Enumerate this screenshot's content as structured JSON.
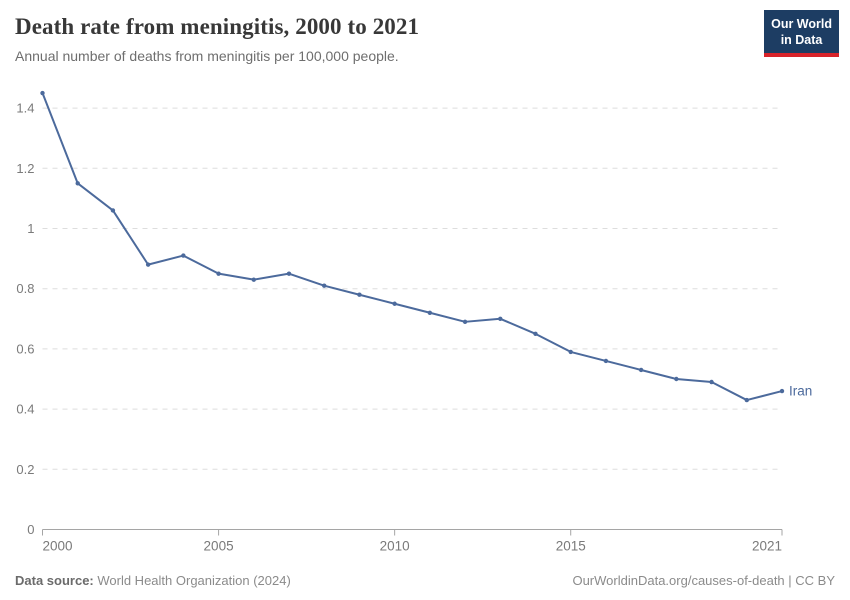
{
  "header": {
    "title": "Death rate from meningitis, 2000 to 2021",
    "subtitle": "Annual number of deaths from meningitis per 100,000 people.",
    "logo_line1": "Our World",
    "logo_line2": "in Data"
  },
  "chart_data": {
    "type": "line",
    "title": "Death rate from meningitis, 2000 to 2021",
    "xlabel": "",
    "ylabel": "",
    "xlim": [
      2000,
      2021
    ],
    "ylim": [
      0,
      1.45
    ],
    "grid": "horizontal-dashed",
    "legend_position": "end-of-line",
    "x_ticks": [
      2000,
      2005,
      2010,
      2015,
      2021
    ],
    "x_tick_labels": [
      "2000",
      "2005",
      "2010",
      "2015",
      "2021"
    ],
    "y_ticks": [
      0,
      0.2,
      0.4,
      0.6,
      0.8,
      1,
      1.2,
      1.4
    ],
    "y_tick_labels": [
      "0",
      "0.2",
      "0.4",
      "0.6",
      "0.8",
      "1",
      "1.2",
      "1.4"
    ],
    "series": [
      {
        "name": "Iran",
        "color": "#4C6A9C",
        "x": [
          2000,
          2001,
          2002,
          2003,
          2004,
          2005,
          2006,
          2007,
          2008,
          2009,
          2010,
          2011,
          2012,
          2013,
          2014,
          2015,
          2016,
          2017,
          2018,
          2019,
          2020,
          2021
        ],
        "values": [
          1.45,
          1.15,
          1.06,
          0.88,
          0.91,
          0.85,
          0.83,
          0.85,
          0.81,
          0.78,
          0.75,
          0.72,
          0.69,
          0.7,
          0.65,
          0.59,
          0.56,
          0.53,
          0.5,
          0.49,
          0.43,
          0.46
        ]
      }
    ]
  },
  "footer": {
    "source_label": "Data source:",
    "source_value": " World Health Organization (2024)",
    "attribution": "OurWorldinData.org/causes-of-death | CC BY"
  },
  "colors": {
    "line": "#4C6A9C",
    "gridline": "#dddddd",
    "axis": "#a5a5a5",
    "tick_label": "#7a7a7a",
    "logo_bg": "#1d3d63",
    "logo_accent": "#d8232a"
  }
}
